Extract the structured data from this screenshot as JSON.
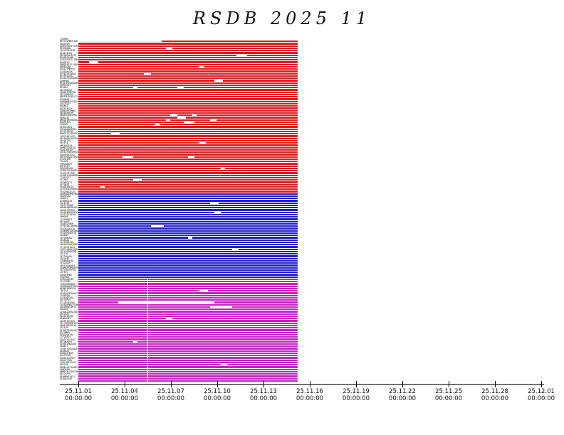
{
  "title": "RSDB 2025 11",
  "chart_data": {
    "type": "gantt",
    "title": "RSDB 2025 11",
    "description": "Availability timeline chart: dense horizontal bars per station/row, three color groups, data present from 25.11.01 to about 25.11.15",
    "x_ticks": [
      {
        "date": "25.11.01",
        "time": "00:00:00"
      },
      {
        "date": "25.11.04",
        "time": "00:00:00"
      },
      {
        "date": "25.11.07",
        "time": "00:00:00"
      },
      {
        "date": "25.11.10",
        "time": "00:00:00"
      },
      {
        "date": "25.11.13",
        "time": "00:00:00"
      },
      {
        "date": "25.11.16",
        "time": "00:00:00"
      },
      {
        "date": "25.11.19",
        "time": "00:00:00"
      },
      {
        "date": "25.11.22",
        "time": "00:00:00"
      },
      {
        "date": "25.11.25",
        "time": "00:00:00"
      },
      {
        "date": "25.11.28",
        "time": "00:00:00"
      },
      {
        "date": "25.12.01",
        "time": "00:00:00"
      }
    ],
    "axis_range_days": 30,
    "bar_start_frac": 0.0,
    "bar_end_frac": 0.474,
    "groups": [
      {
        "name": "group-red",
        "color": "#dd1c1c",
        "rows": 66
      },
      {
        "name": "group-blue",
        "color": "#2020c8",
        "rows": 37
      },
      {
        "name": "group-magenta",
        "color": "#c424c4",
        "rows": 45
      }
    ],
    "row_labels_illegible": true,
    "gaps": [
      [
        0,
        0.0,
        0.38
      ],
      [
        3,
        0.4,
        0.03
      ],
      [
        6,
        0.72,
        0.05
      ],
      [
        9,
        0.05,
        0.04
      ],
      [
        11,
        0.55,
        0.02
      ],
      [
        14,
        0.3,
        0.03
      ],
      [
        17,
        0.62,
        0.04
      ],
      [
        20,
        0.25,
        0.02
      ],
      [
        20,
        0.45,
        0.03
      ],
      [
        32,
        0.42,
        0.03
      ],
      [
        32,
        0.52,
        0.02
      ],
      [
        33,
        0.45,
        0.04
      ],
      [
        34,
        0.4,
        0.02
      ],
      [
        34,
        0.6,
        0.03
      ],
      [
        35,
        0.48,
        0.05
      ],
      [
        36,
        0.35,
        0.02
      ],
      [
        40,
        0.15,
        0.04
      ],
      [
        44,
        0.55,
        0.03
      ],
      [
        50,
        0.2,
        0.05
      ],
      [
        50,
        0.5,
        0.03
      ],
      [
        55,
        0.65,
        0.02
      ],
      [
        60,
        0.25,
        0.04
      ],
      [
        63,
        0.1,
        0.02
      ],
      [
        70,
        0.6,
        0.04
      ],
      [
        74,
        0.62,
        0.03
      ],
      [
        80,
        0.33,
        0.06
      ],
      [
        85,
        0.5,
        0.02
      ],
      [
        90,
        0.7,
        0.03
      ],
      [
        108,
        0.55,
        0.04
      ],
      [
        113,
        0.18,
        0.44
      ],
      [
        115,
        0.6,
        0.1
      ],
      [
        120,
        0.4,
        0.03
      ],
      [
        130,
        0.25,
        0.02
      ],
      [
        140,
        0.65,
        0.03
      ]
    ],
    "vertical_gap": {
      "group_index": 2,
      "frac": 0.315
    }
  }
}
